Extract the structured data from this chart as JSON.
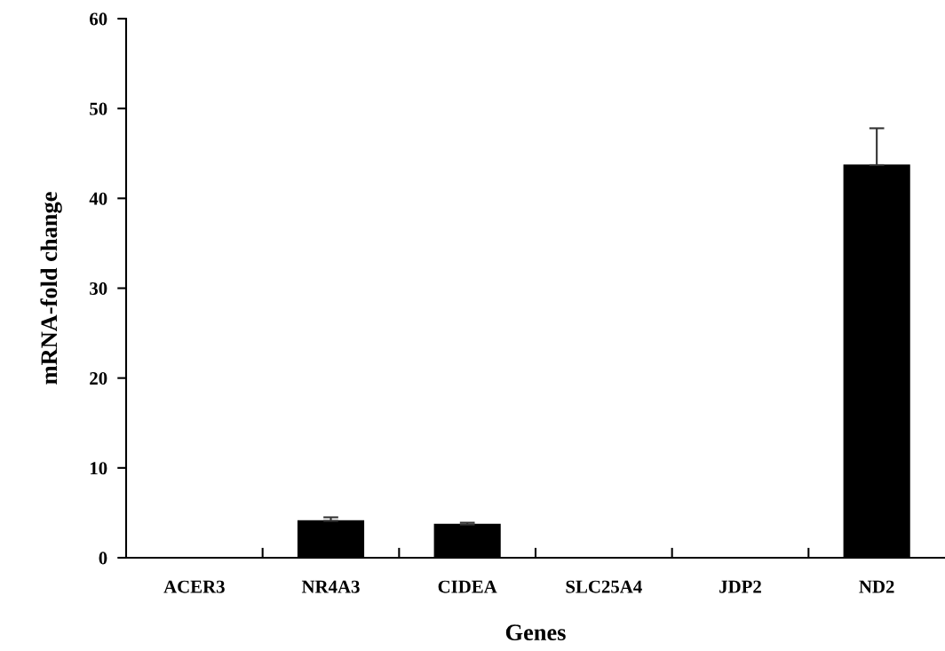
{
  "chart_data": {
    "type": "bar",
    "xlabel": "Genes",
    "ylabel": "mRNA-fold change",
    "categories": [
      "ACER3",
      "NR4A3",
      "CIDEA",
      "SLC25A4",
      "JDP2",
      "ND2"
    ],
    "values": [
      0,
      4.1,
      3.7,
      0,
      0,
      43.7
    ],
    "errors": [
      null,
      0.4,
      0.2,
      null,
      null,
      4.1
    ],
    "color": "#000000",
    "ylim": [
      0,
      60
    ],
    "yticks": [
      0,
      10,
      20,
      30,
      40,
      50,
      60
    ],
    "grid": false
  }
}
